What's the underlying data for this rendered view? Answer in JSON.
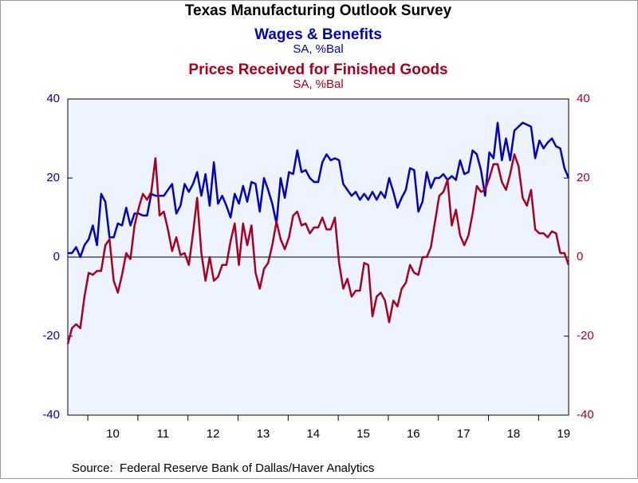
{
  "chart_data": {
    "type": "line",
    "title": "Texas Manufacturing Outlook Survey",
    "source": "Source:  Federal Reserve Bank of Dallas/Haver Analytics",
    "x": [
      2009.6,
      2009.683,
      2009.767,
      2009.85,
      2009.933,
      2010.017,
      2010.1,
      2010.183,
      2010.267,
      2010.35,
      2010.433,
      2010.517,
      2010.6,
      2010.683,
      2010.767,
      2010.85,
      2010.933,
      2011.017,
      2011.1,
      2011.183,
      2011.267,
      2011.35,
      2011.433,
      2011.517,
      2011.6,
      2011.683,
      2011.767,
      2011.85,
      2011.933,
      2012.017,
      2012.1,
      2012.183,
      2012.267,
      2012.35,
      2012.433,
      2012.517,
      2012.6,
      2012.683,
      2012.767,
      2012.85,
      2012.933,
      2013.017,
      2013.1,
      2013.183,
      2013.267,
      2013.35,
      2013.433,
      2013.517,
      2013.6,
      2013.683,
      2013.767,
      2013.85,
      2013.933,
      2014.017,
      2014.1,
      2014.183,
      2014.267,
      2014.35,
      2014.433,
      2014.517,
      2014.6,
      2014.683,
      2014.767,
      2014.85,
      2014.933,
      2015.017,
      2015.1,
      2015.183,
      2015.267,
      2015.35,
      2015.433,
      2015.517,
      2015.6,
      2015.683,
      2015.767,
      2015.85,
      2015.933,
      2016.017,
      2016.1,
      2016.183,
      2016.267,
      2016.35,
      2016.433,
      2016.517,
      2016.6,
      2016.683,
      2016.767,
      2016.85,
      2016.933,
      2017.017,
      2017.1,
      2017.183,
      2017.267,
      2017.35,
      2017.433,
      2017.517,
      2017.6,
      2017.683,
      2017.767,
      2017.85,
      2017.933,
      2018.017,
      2018.1,
      2018.183,
      2018.267,
      2018.35,
      2018.433,
      2018.517,
      2018.6,
      2018.683,
      2018.767,
      2018.85,
      2018.933,
      2019.017,
      2019.1,
      2019.183,
      2019.267,
      2019.35,
      2019.433,
      2019.517,
      2019.6
    ],
    "xlim": [
      2009.6,
      2019.6
    ],
    "xticks": [
      {
        "value": 2010,
        "label": "10"
      },
      {
        "value": 2011,
        "label": "11"
      },
      {
        "value": 2012,
        "label": "12"
      },
      {
        "value": 2013,
        "label": "13"
      },
      {
        "value": 2014,
        "label": "14"
      },
      {
        "value": 2015,
        "label": "15"
      },
      {
        "value": 2016,
        "label": "16"
      },
      {
        "value": 2017,
        "label": "17"
      },
      {
        "value": 2018,
        "label": "18"
      },
      {
        "value": 2019,
        "label": "19"
      }
    ],
    "ylim": [
      -40,
      40
    ],
    "yticks": [
      -40,
      -20,
      0,
      20,
      40
    ],
    "y2lim": [
      -40,
      40
    ],
    "y2ticks": [
      -40,
      -20,
      0,
      20,
      40
    ],
    "series": [
      {
        "name": "Wages & Benefits",
        "unit": "SA, %Bal",
        "color": "#0000c0",
        "axis": "y",
        "values": [
          1,
          1,
          2.5,
          0,
          3,
          4.5,
          8,
          3,
          16,
          14,
          5,
          5,
          8.5,
          8,
          12.5,
          8,
          11,
          11,
          10.5,
          10.5,
          16,
          15.5,
          15.5,
          15.5,
          17,
          18.5,
          11,
          13,
          18.5,
          16.5,
          18.5,
          21.5,
          15.5,
          21,
          13,
          24,
          13.5,
          15.5,
          13,
          10,
          16,
          13.5,
          18,
          14,
          19,
          18.5,
          11.5,
          20,
          17,
          13.5,
          8.5,
          20,
          15,
          21.5,
          21,
          27,
          21.5,
          22,
          20,
          19,
          19,
          24,
          26,
          24.5,
          25,
          24.5,
          18.5,
          17,
          15.5,
          16.5,
          14.5,
          16,
          14.5,
          16.5,
          14.5,
          16.5,
          15,
          20,
          16.5,
          12.5,
          15,
          17,
          22.5,
          22,
          11.5,
          14,
          21.5,
          17.5,
          20,
          20,
          21,
          19.5,
          20.5,
          19.5,
          24.5,
          21,
          21.5,
          27,
          26,
          22,
          15.5,
          26.5,
          25,
          34,
          24.5,
          30,
          24.5,
          32,
          33,
          34,
          33.5,
          33,
          25,
          29.5,
          27.5,
          29,
          30,
          28,
          27.5,
          22.5,
          20
        ]
      },
      {
        "name": "Prices Received for Finished Goods",
        "unit": "SA, %Bal",
        "color": "#a8001e",
        "axis": "y2",
        "values": [
          -22,
          -18,
          -17,
          -18,
          -10,
          -4,
          -4.5,
          -3.5,
          -3.5,
          3,
          4.5,
          -6,
          -9,
          -4.5,
          1,
          -0.5,
          8,
          12.5,
          16,
          14.5,
          16.5,
          25,
          10.5,
          11.5,
          7,
          1.5,
          5,
          0.5,
          1,
          -2,
          6,
          15,
          1,
          -6,
          0,
          -6,
          -5,
          -2,
          -2,
          4,
          8.5,
          -2,
          8.5,
          3,
          8,
          -4,
          -8,
          -3,
          -1.5,
          3,
          9,
          4.5,
          2,
          5,
          10.5,
          11.5,
          8,
          8.5,
          6,
          7.5,
          7.5,
          10,
          7,
          7,
          10,
          -1.5,
          -8,
          -5.5,
          -10,
          -8.5,
          -8.5,
          -1.5,
          -2,
          -15,
          -10,
          -9,
          -11,
          -16.5,
          -11,
          -12.5,
          -8,
          -6.5,
          -2,
          -4,
          -4.5,
          0,
          0,
          2.5,
          9,
          15.5,
          16.5,
          19.5,
          8,
          12,
          5.5,
          3,
          5.5,
          11,
          18,
          16.5,
          17,
          20,
          23.5,
          23.5,
          19,
          17,
          21,
          26,
          23,
          15,
          13,
          17,
          7,
          6,
          6,
          5,
          6.5,
          6,
          1,
          1,
          -2
        ]
      }
    ]
  }
}
